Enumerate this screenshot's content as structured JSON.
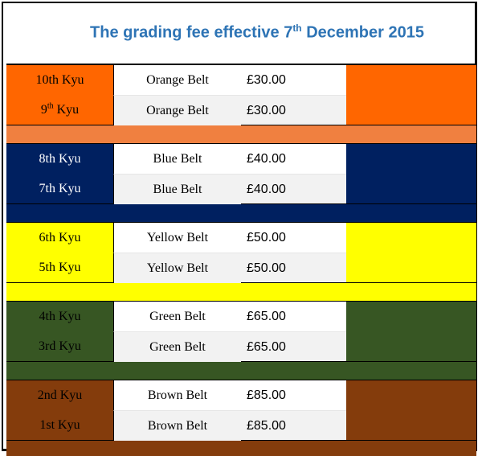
{
  "title": {
    "prefix": "The grading fee effective 7",
    "suffix_sup": "th",
    "rest": " December 2015"
  },
  "colors": {
    "title": "#2e74b5",
    "orange": "#ff6600",
    "orange_separator": "#f08040",
    "blue": "#002060",
    "yellow": "#ffff00",
    "green": "#375623",
    "brown": "#843c0c"
  },
  "groups": [
    {
      "color_key": "orange",
      "sep_key": "orange_separator",
      "text_color": "#000000",
      "rows": [
        {
          "kyu": "10th Kyu",
          "belt": "Orange Belt",
          "fee": "£30.00"
        },
        {
          "kyu_main": "9",
          "kyu_sup": "th",
          "kyu_rest": " Kyu",
          "belt": "Orange Belt",
          "fee": "£30.00"
        }
      ]
    },
    {
      "color_key": "blue",
      "sep_key": "blue",
      "text_color": "#ffffff",
      "rows": [
        {
          "kyu": "8th Kyu",
          "belt": "Blue Belt",
          "fee": "£40.00"
        },
        {
          "kyu": "7th Kyu",
          "belt": "Blue Belt",
          "fee": "£40.00"
        }
      ]
    },
    {
      "color_key": "yellow",
      "sep_key": "yellow",
      "text_color": "#000000",
      "rows": [
        {
          "kyu": "6th Kyu",
          "belt": "Yellow Belt",
          "fee": "£50.00"
        },
        {
          "kyu": "5th Kyu",
          "belt": "Yellow Belt",
          "fee": "£50.00"
        }
      ]
    },
    {
      "color_key": "green",
      "sep_key": "green",
      "text_color": "#000000",
      "rows": [
        {
          "kyu": "4th Kyu",
          "belt": "Green Belt",
          "fee": "£65.00"
        },
        {
          "kyu": "3rd Kyu",
          "belt": "Green Belt",
          "fee": "£65.00"
        }
      ]
    },
    {
      "color_key": "brown",
      "sep_key": "brown",
      "text_color": "#000000",
      "rows": [
        {
          "kyu": "2nd Kyu",
          "belt": "Brown Belt",
          "fee": "£85.00"
        },
        {
          "kyu": "1st Kyu",
          "belt": "Brown Belt",
          "fee": "£85.00"
        }
      ]
    }
  ]
}
